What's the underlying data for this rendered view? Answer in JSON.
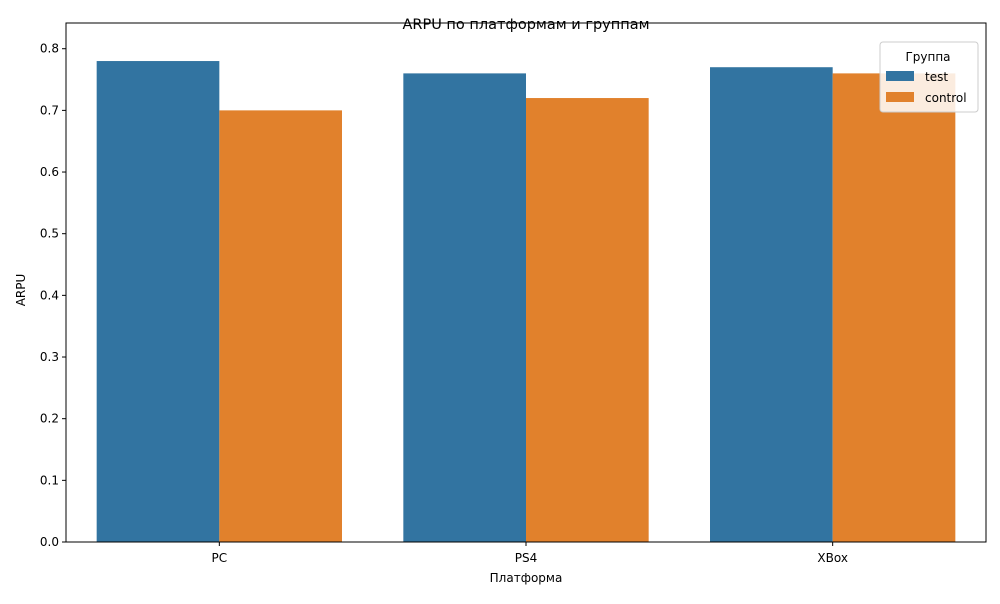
{
  "chart_data": {
    "type": "bar",
    "title": "ARPU по платформам и группам",
    "xlabel": "Платформа",
    "ylabel": "ARPU",
    "categories": [
      "PC",
      "PS4",
      "XBox"
    ],
    "series": [
      {
        "name": "test",
        "values": [
          0.78,
          0.76,
          0.77
        ],
        "color": "#3274a1"
      },
      {
        "name": "control",
        "values": [
          0.7,
          0.72,
          0.76
        ],
        "color": "#e1812c"
      }
    ],
    "ylim": [
      0,
      0.8
    ],
    "yticks": [
      "0.0",
      "0.1",
      "0.2",
      "0.3",
      "0.4",
      "0.5",
      "0.6",
      "0.7",
      "0.8"
    ],
    "grid": false,
    "legend": {
      "title": "Группа",
      "placement": "top-right"
    }
  }
}
